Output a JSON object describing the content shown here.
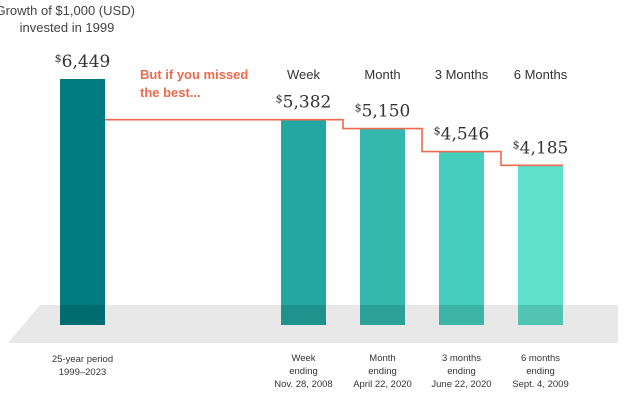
{
  "chart_data": {
    "type": "bar",
    "title_lines": [
      "Growth of $1,000 (USD)",
      "invested in 1999"
    ],
    "annotation_lines": [
      "But if you missed",
      "the best..."
    ],
    "currency_symbol": "$",
    "bars": [
      {
        "header": "",
        "value": 6449,
        "value_label": "6,449",
        "color": "#007c80",
        "xlabel_lines": [
          "25-year period",
          "1999–2023"
        ]
      },
      {
        "header": "Week",
        "value": 5382,
        "value_label": "5,382",
        "color": "#24a7a1",
        "xlabel_lines": [
          "Week",
          "ending",
          "Nov. 28, 2008"
        ]
      },
      {
        "header": "Month",
        "value": 5150,
        "value_label": "5,150",
        "color": "#34b8ae",
        "xlabel_lines": [
          "Month",
          "ending",
          "April 22, 2020"
        ]
      },
      {
        "header": "3 Months",
        "value": 4546,
        "value_label": "4,546",
        "color": "#45cdbd",
        "xlabel_lines": [
          "3 months",
          "ending",
          "June 22, 2020"
        ]
      },
      {
        "header": "6 Months",
        "value": 4185,
        "value_label": "4,185",
        "color": "#5ee0cc",
        "xlabel_lines": [
          "6 months",
          "ending",
          "Sept. 4, 2009"
        ]
      }
    ],
    "step_line_color": "#ee6a4d",
    "floor_color": "#e8e8e8"
  }
}
